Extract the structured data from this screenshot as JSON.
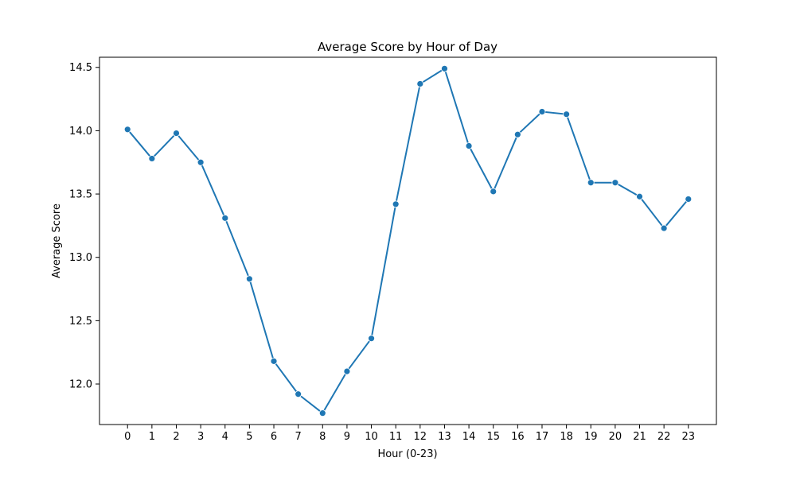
{
  "chart_data": {
    "type": "line",
    "title": "Average Score by Hour of Day",
    "xlabel": "Hour (0-23)",
    "ylabel": "Average Score",
    "x": [
      0,
      1,
      2,
      3,
      4,
      5,
      6,
      7,
      8,
      9,
      10,
      11,
      12,
      13,
      14,
      15,
      16,
      17,
      18,
      19,
      20,
      21,
      22,
      23
    ],
    "series": [
      {
        "values": [
          14.01,
          13.78,
          13.98,
          13.75,
          13.31,
          12.83,
          12.18,
          11.92,
          11.77,
          12.1,
          12.36,
          13.42,
          14.37,
          14.49,
          13.88,
          13.52,
          13.97,
          14.15,
          14.13,
          13.59,
          13.59,
          13.48,
          13.23,
          13.46
        ],
        "color": "#1f77b4",
        "marker": "circle"
      }
    ],
    "xticks": [
      "0",
      "1",
      "2",
      "3",
      "4",
      "5",
      "6",
      "7",
      "8",
      "9",
      "10",
      "11",
      "12",
      "13",
      "14",
      "15",
      "16",
      "17",
      "18",
      "19",
      "20",
      "21",
      "22",
      "23"
    ],
    "yticks": [
      "12.0",
      "12.5",
      "13.0",
      "13.5",
      "14.0",
      "14.5"
    ],
    "xlim": [
      -1.15,
      24.15
    ],
    "ylim": [
      11.68,
      14.58
    ],
    "grid": false,
    "legend": "none"
  }
}
